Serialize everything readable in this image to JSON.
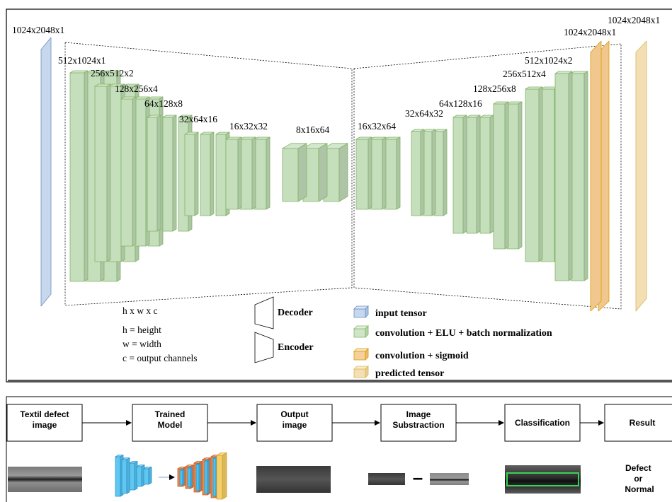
{
  "architecture": {
    "input_label": "1024x2048x1",
    "encoder_labels": [
      "512x1024x1",
      "256x512x2",
      "128x256x4",
      "64x128x8",
      "32x64x16",
      "16x32x32"
    ],
    "bottleneck_label": "8x16x64",
    "decoder_labels": [
      "16x32x64",
      "32x64x32",
      "64x128x16",
      "128x256x8",
      "256x512x4",
      "512x1024x2"
    ],
    "sigmoid_label": "1024x2048x1",
    "output_label": "1024x2048x1",
    "notation": {
      "title": "h x w x c",
      "lines": [
        "h = height",
        "w = width",
        "c = output channels"
      ]
    },
    "shape_legend": {
      "decoder": "Decoder",
      "encoder": "Encoder"
    },
    "legend": [
      {
        "label": "input tensor",
        "color": "#c6d7ee"
      },
      {
        "label": "convolution + ELU + batch normalization",
        "color": "#cfe5c8"
      },
      {
        "label": "convolution + sigmoid",
        "color": "#f5d09a"
      },
      {
        "label": "predicted tensor",
        "color": "#f3dfb3"
      }
    ],
    "colors": {
      "input": "#c6d7ee",
      "input_stroke": "#6c8ebf",
      "conv": "#c5dfbd",
      "conv_stroke": "#82b366",
      "sigmoid": "#f1c78e",
      "sigmoid_stroke": "#d79b00",
      "predicted": "#f3dfb3",
      "predicted_stroke": "#d6b656"
    }
  },
  "pipeline": {
    "steps": [
      {
        "label": "Textil defect\nimage"
      },
      {
        "label": "Trained\nModel"
      },
      {
        "label": "Output\nimage"
      },
      {
        "label": "Image\nSubstraction"
      },
      {
        "label": "Classification"
      },
      {
        "label": "Result"
      }
    ],
    "minus_sign": "–",
    "result_text": "Defect\nor\nNormal",
    "highlight_color": "#39d353"
  }
}
